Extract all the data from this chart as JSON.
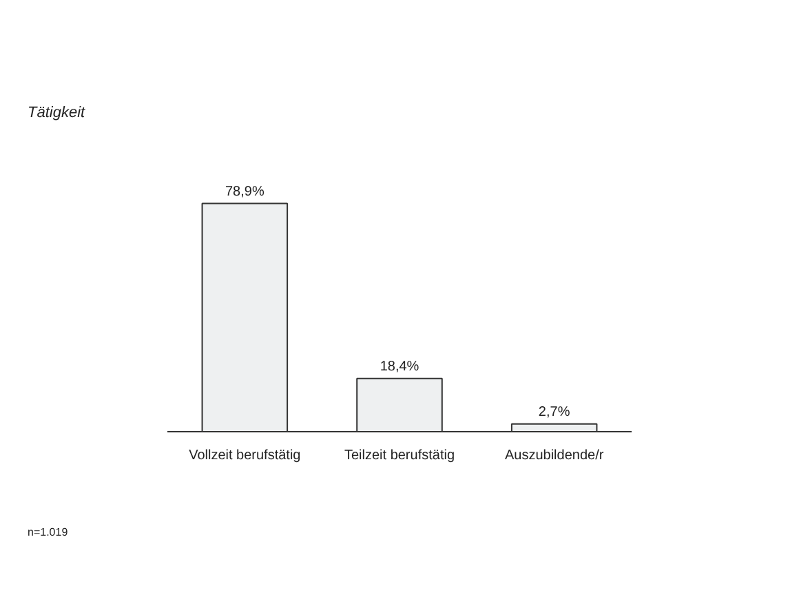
{
  "chart_data": {
    "type": "bar",
    "title": "Tätigkeit",
    "categories": [
      "Vollzeit berufstätig",
      "Teilzeit berufstätig",
      "Auszubildende/r"
    ],
    "values": [
      78.9,
      18.4,
      2.7
    ],
    "value_labels": [
      "78,9%",
      "18,4%",
      "2,7%"
    ],
    "color": "#eef0f1",
    "grid": false,
    "annotations": [
      "n=1.019"
    ]
  }
}
